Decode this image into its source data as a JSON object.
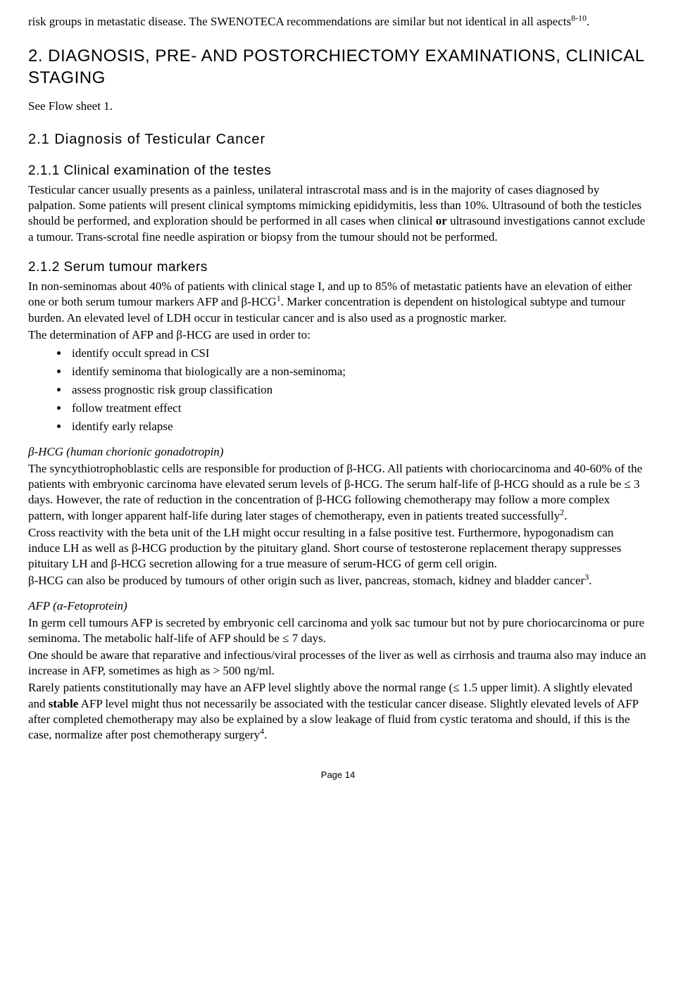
{
  "intro_fragment_1": "risk groups in metastatic disease. The SWENOTECA recommendations are similar but not identical in all aspects",
  "intro_sup": "8-10",
  "intro_fragment_2": ".",
  "h_main": "2.  DIAGNOSIS, PRE- AND POSTORCHIECTOMY EXAMINATIONS, CLINICAL STAGING",
  "see_flow": "See Flow sheet 1.",
  "h_21": "2.1   Diagnosis of Testicular Cancer",
  "h_211": "2.1.1 Clinical examination of the testes",
  "p_211a": "Testicular cancer usually presents as a painless, unilateral intrascrotal mass and is in the majority of cases diagnosed by palpation. Some patients will present clinical symptoms mimicking epididymitis, less than 10%. Ultrasound of both the testicles should be performed, and exploration should be performed in all cases when clinical ",
  "p_211b_bold": "or",
  "p_211c": " ultrasound investigations cannot exclude a tumour. Trans-scrotal fine needle aspiration or biopsy from the tumour should not be performed.",
  "h_212": "2.1.2 Serum tumour markers",
  "p_212a": "In non-seminomas about 40% of patients with clinical stage I, and up to 85% of metastatic patients have an elevation of either one or both serum tumour markers AFP and β-HCG",
  "p_212a_sup": "1",
  "p_212b": ". Marker concentration is dependent on histological subtype and tumour burden. An elevated level of LDH occur in testicular cancer and is also used as a prognostic marker.",
  "p_212c": "The determination of AFP and β-HCG are used in order to:",
  "bullets": [
    "identify occult spread in CSI",
    "identify seminoma that biologically are a non-seminoma;",
    "assess prognostic risk group classification",
    "follow treatment effect",
    "identify early relapse"
  ],
  "hcg_title": "β-HCG (human chorionic gonadotropin)",
  "hcg_p1a": "The syncythiotrophoblastic cells are responsible for production of β-HCG. All patients with choriocarcinoma and 40-60% of the patients with embryonic carcinoma have elevated serum levels of β-HCG. The serum half-life of β-HCG should as a rule be ≤ 3 days. However, the rate of reduction in the concentration of β-HCG following chemotherapy may follow a more complex pattern, with longer apparent half-life during later stages of chemotherapy, even in patients treated successfully",
  "hcg_p1_sup": "2",
  "hcg_p1b": ".",
  "hcg_p2": "Cross reactivity with the beta unit of the LH might occur resulting in a false positive test. Furthermore, hypogonadism can induce LH as well as β-HCG production by the pituitary gland. Short course of testosterone replacement therapy suppresses pituitary LH and β-HCG secretion allowing for a true measure of serum-HCG of germ cell origin.",
  "hcg_p3a": "β-HCG can also be produced by tumours of other origin such as liver, pancreas, stomach, kidney and bladder cancer",
  "hcg_p3_sup": "3",
  "hcg_p3b": ".",
  "afp_title": "AFP (α-Fetoprotein)",
  "afp_p1": "In germ cell tumours AFP is secreted by embryonic cell carcinoma and yolk sac tumour but not by pure choriocarcinoma or pure seminoma. The metabolic half-life of AFP should be ≤ 7 days.",
  "afp_p2": "One should be aware that reparative and infectious/viral processes of the liver as well as cirrhosis and trauma also may induce an increase in AFP, sometimes as high as > 500 ng/ml.",
  "afp_p3a": "Rarely patients constitutionally may have an AFP level slightly above the normal range (≤ 1.5 upper limit). A slightly elevated and ",
  "afp_p3_bold": "stable",
  "afp_p3b": " AFP level might thus not necessarily be associated with the testicular cancer disease. Slightly elevated levels of AFP after completed chemotherapy may also be explained by a slow leakage of fluid from cystic teratoma and should, if this is the case, normalize after post chemotherapy surgery",
  "afp_p3_sup": "4",
  "afp_p3c": ".",
  "footer": "Page 14"
}
